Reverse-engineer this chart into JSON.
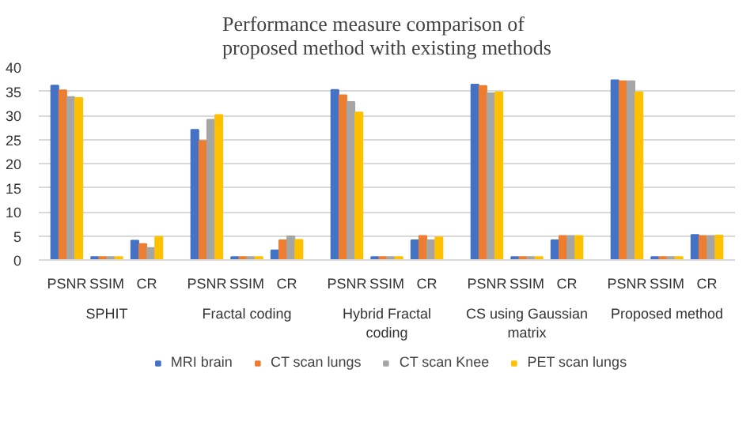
{
  "chart_data": {
    "type": "bar",
    "title": "Performance measure comparison of\nproposed method with existing methods",
    "categories": [
      "PSNR",
      "SSIM",
      "CR",
      "PSNR",
      "SSIM",
      "CR",
      "PSNR",
      "SSIM",
      "CR",
      "PSNR",
      "SSIM",
      "CR",
      "PSNR",
      "SSIM",
      "CR"
    ],
    "annotations": [
      "SPHIT",
      "Fractal coding",
      "Hybrid Fractal coding",
      "CS using Gaussian matrix",
      "Proposed method"
    ],
    "series": [
      {
        "name": "MRI brain",
        "color": "#4472c4",
        "values": [
          36.2,
          0.6,
          4.0,
          27.0,
          0.6,
          2.0,
          35.3,
          0.6,
          4.1,
          36.4,
          0.6,
          4.1,
          37.3,
          0.6,
          5.2
        ]
      },
      {
        "name": "CT scan lungs",
        "color": "#ed7d31",
        "values": [
          35.2,
          0.6,
          3.3,
          24.7,
          0.6,
          4.1,
          34.2,
          0.6,
          5.0,
          36.1,
          0.6,
          5.0,
          37.1,
          0.6,
          5.0
        ]
      },
      {
        "name": "CT scan Knee",
        "color": "#a5a5a5",
        "values": [
          33.8,
          0.6,
          2.5,
          29.1,
          0.6,
          4.9,
          32.8,
          0.6,
          4.1,
          34.6,
          0.6,
          5.0,
          37.1,
          0.6,
          5.0
        ]
      },
      {
        "name": "PET scan lungs",
        "color": "#ffc000",
        "values": [
          33.6,
          0.6,
          4.8,
          30.1,
          0.6,
          4.2,
          30.6,
          0.6,
          4.7,
          34.8,
          0.6,
          5.0,
          34.8,
          0.6,
          5.1
        ]
      }
    ],
    "ylim": [
      0,
      40
    ],
    "yticks": [
      0,
      5,
      10,
      15,
      20,
      25,
      30,
      35,
      40
    ],
    "grid": "y",
    "legend": "bottom"
  }
}
